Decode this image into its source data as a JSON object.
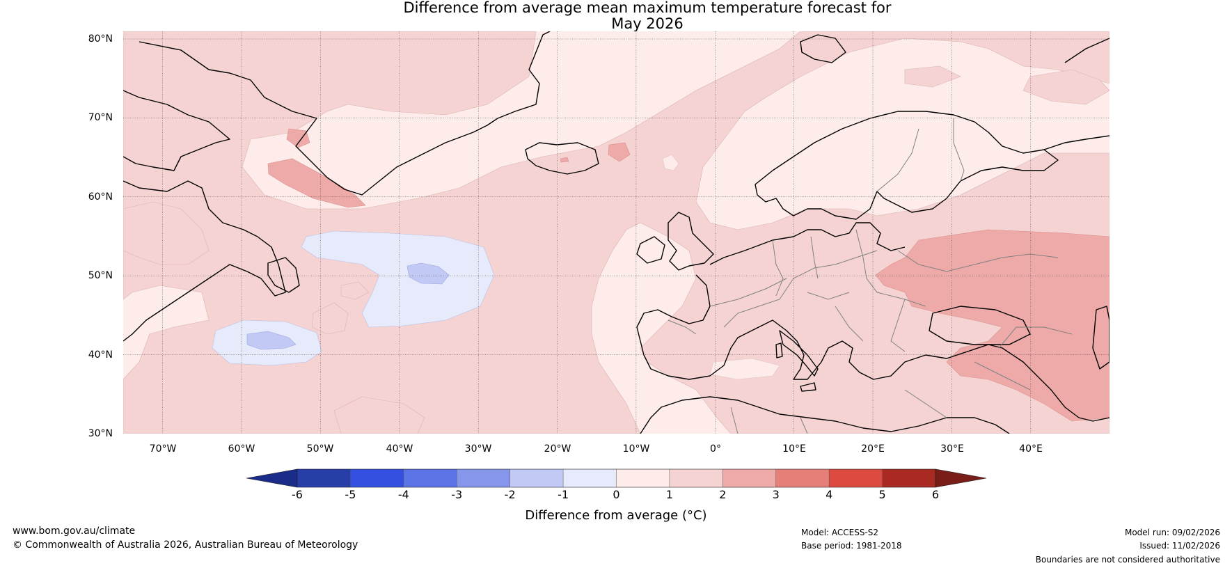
{
  "title": {
    "line1": "Difference from average mean maximum temperature forecast for",
    "line2": "May 2026"
  },
  "map": {
    "lat_labels": [
      "80°N",
      "70°N",
      "60°N",
      "50°N",
      "40°N",
      "30°N"
    ],
    "lon_labels": [
      "70°W",
      "60°W",
      "50°W",
      "40°W",
      "30°W",
      "20°W",
      "10°W",
      "0°",
      "10°E",
      "20°E",
      "30°E",
      "40°E"
    ],
    "extent": {
      "lon_min": -75,
      "lon_max": 50,
      "lat_min": 30,
      "lat_max": 81
    }
  },
  "colorbar": {
    "ticks": [
      "-6",
      "-5",
      "-4",
      "-3",
      "-2",
      "-1",
      "0",
      "1",
      "2",
      "3",
      "4",
      "5",
      "6"
    ],
    "colors": [
      "#273da8",
      "#3350e0",
      "#5d74e6",
      "#8596eb",
      "#c1c9f4",
      "#e6eafb",
      "#fdecea",
      "#f5d3d2",
      "#eeaaa8",
      "#e57f77",
      "#dd4a3f",
      "#a92a22"
    ],
    "under_color": "#1a2c8a",
    "over_color": "#7a1c18",
    "label": "Difference from average (°C)"
  },
  "colors": {
    "ocean_base": "#fdecea",
    "anomaly_1_2": "#f5d3d2",
    "anomaly_2_3": "#eeaaa8",
    "anomaly_m1_0": "#e6eafb",
    "anomaly_m2_m1": "#c1c9f4",
    "coast": "#000000",
    "borders": "#7a7a7a"
  },
  "footer": {
    "url": "www.bom.gov.au/climate",
    "copyright": "© Commonwealth of Australia 2026, Australian Bureau of Meteorology",
    "model": "Model: ACCESS-S2",
    "base_period": "Base period: 1981-2018",
    "model_run": "Model run: 09/02/2026",
    "issued": "Issued: 11/02/2026",
    "disclaimer": "Boundaries are not considered authoritative"
  }
}
